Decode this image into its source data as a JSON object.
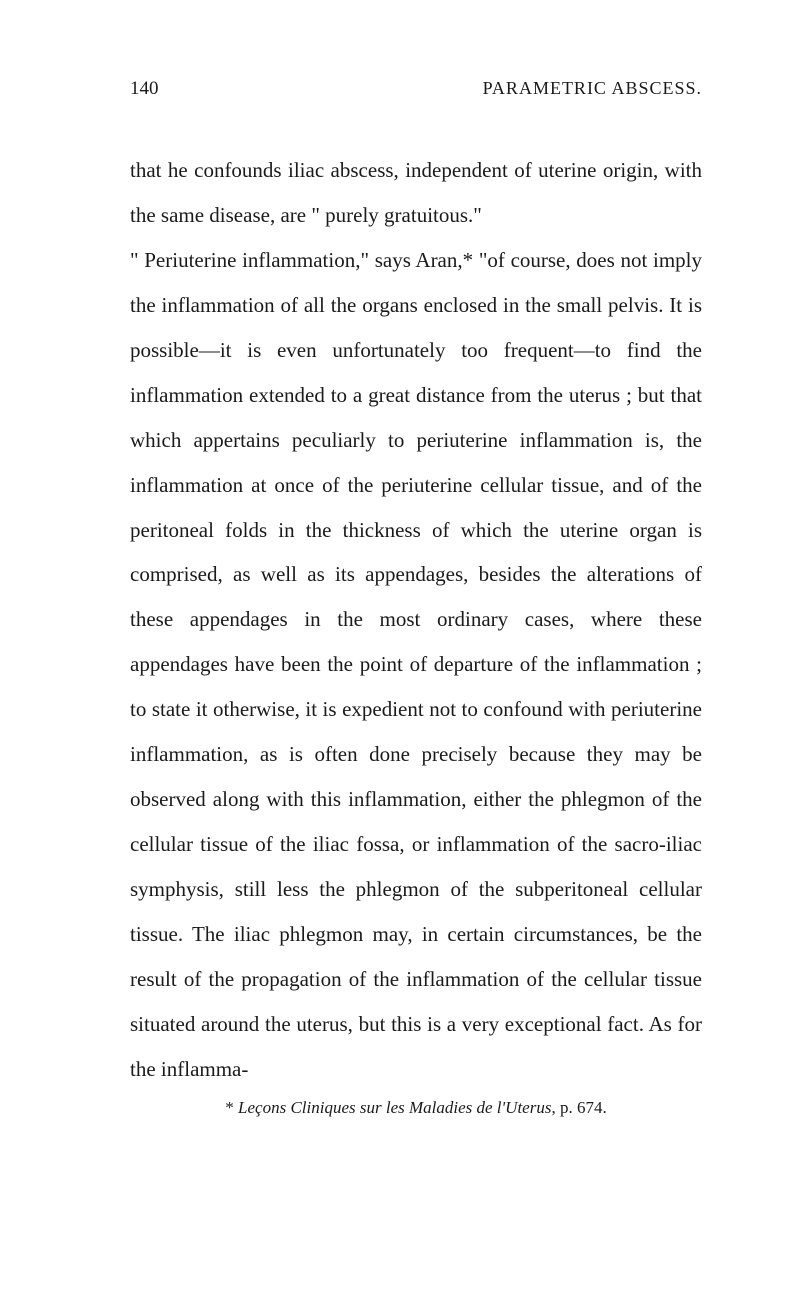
{
  "header": {
    "pageNumber": "140",
    "title": "PARAMETRIC ABSCESS."
  },
  "paragraphs": {
    "p1": "that he confounds iliac abscess, independent of uterine origin, with the same disease, are \" purely gratuitous.\"",
    "p2": "\" Periuterine inflammation,\" says Aran,* \"of course, does not imply the inflammation of all the organs enclosed in the small pelvis. It is possible—it is even unfortunately too frequent—to find the inflammation extended to a great distance from the uterus ; but that which appertains peculiarly to periuterine inflammation is, the inflammation at once of the periuterine cellular tissue, and of the peritoneal folds in the thickness of which the uterine organ is comprised, as well as its appendages, besides the alterations of these appendages in the most ordinary cases, where these appendages have been the point of departure of the inflammation ; to state it otherwise, it is expedient not to confound with periuterine inflammation, as is often done precisely because they may be observed along with this inflammation, either the phlegmon of the cellular tissue of the iliac fossa, or inflammation of the sacro-iliac symphysis, still less the phlegmon of the subperitoneal cellular tissue. The iliac phlegmon may, in certain circumstances, be the result of the propagation of the inflammation of the cellular tissue situated around the uterus, but this is a very exceptional fact. As for the inflamma-"
  },
  "footnote": {
    "marker": "*",
    "textBefore": "Leçons Cliniques sur les Maladies de l'Uterus",
    "textAfter": ", p. 674."
  },
  "styling": {
    "backgroundColor": "#ffffff",
    "textColor": "#1a1a1a",
    "bodyFontSize": 21,
    "lineHeight": 2.14,
    "headerFontSize": 19,
    "footnoteFontSize": 17
  }
}
